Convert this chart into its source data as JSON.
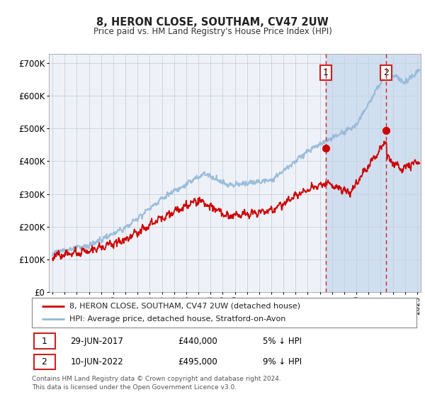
{
  "title": "8, HERON CLOSE, SOUTHAM, CV47 2UW",
  "subtitle": "Price paid vs. HM Land Registry's House Price Index (HPI)",
  "ylabel_ticks": [
    "£0",
    "£100K",
    "£200K",
    "£300K",
    "£400K",
    "£500K",
    "£600K",
    "£700K"
  ],
  "ytick_values": [
    0,
    100000,
    200000,
    300000,
    400000,
    500000,
    600000,
    700000
  ],
  "ylim": [
    0,
    730000
  ],
  "xlim_start": 1994.7,
  "xlim_end": 2025.3,
  "legend_line1": "8, HERON CLOSE, SOUTHAM, CV47 2UW (detached house)",
  "legend_line2": "HPI: Average price, detached house, Stratford-on-Avon",
  "marker1_date": "29-JUN-2017",
  "marker1_price": "£440,000",
  "marker1_hpi": "5% ↓ HPI",
  "marker1_year": 2017.49,
  "marker1_value": 440000,
  "marker2_date": "10-JUN-2022",
  "marker2_price": "£495,000",
  "marker2_hpi": "9% ↓ HPI",
  "marker2_year": 2022.44,
  "marker2_value": 495000,
  "footer": "Contains HM Land Registry data © Crown copyright and database right 2024.\nThis data is licensed under the Open Government Licence v3.0.",
  "hpi_color": "#93b8d8",
  "price_color": "#cc0000",
  "background_color": "#ffffff",
  "plot_bg_color": "#eef2f8",
  "shade_color": "#d0dff0",
  "grid_color": "#c8d0dc",
  "marker_box_color": "#cc2222",
  "dashed_line_color": "#cc2222",
  "dot_color": "#cc0000"
}
